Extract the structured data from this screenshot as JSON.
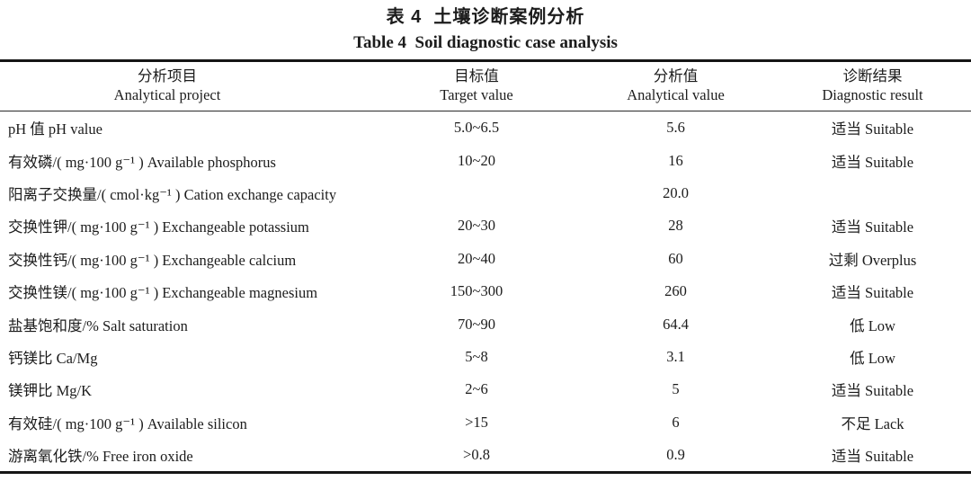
{
  "title": {
    "cn": "表 4  土壤诊断案例分析",
    "en": "Table 4  Soil diagnostic case analysis"
  },
  "table": {
    "headers": [
      {
        "cn": "分析项目",
        "en": "Analytical project"
      },
      {
        "cn": "目标值",
        "en": "Target value"
      },
      {
        "cn": "分析值",
        "en": "Analytical value"
      },
      {
        "cn": "诊断结果",
        "en": "Diagnostic result"
      }
    ],
    "rows": [
      {
        "project": "pH 值 pH value",
        "target": "5.0~6.5",
        "value": "5.6",
        "result": "适当 Suitable"
      },
      {
        "project": "有效磷/( mg·100 g⁻¹ ) Available phosphorus",
        "target": "10~20",
        "value": "16",
        "result": "适当 Suitable"
      },
      {
        "project": "阳离子交换量/( cmol·kg⁻¹ ) Cation exchange capacity",
        "target": "",
        "value": "20.0",
        "result": ""
      },
      {
        "project": "交换性钾/( mg·100 g⁻¹ ) Exchangeable potassium",
        "target": "20~30",
        "value": "28",
        "result": "适当 Suitable"
      },
      {
        "project": "交换性钙/( mg·100 g⁻¹ ) Exchangeable calcium",
        "target": "20~40",
        "value": "60",
        "result": "过剩 Overplus"
      },
      {
        "project": "交换性镁/( mg·100 g⁻¹ ) Exchangeable magnesium",
        "target": "150~300",
        "value": "260",
        "result": "适当 Suitable"
      },
      {
        "project": "盐基饱和度/% Salt saturation",
        "target": "70~90",
        "value": "64.4",
        "result": "低 Low"
      },
      {
        "project": "钙镁比 Ca/Mg",
        "target": "5~8",
        "value": "3.1",
        "result": "低 Low"
      },
      {
        "project": "镁钾比 Mg/K",
        "target": "2~6",
        "value": "5",
        "result": "适当 Suitable"
      },
      {
        "project": "有效硅/( mg·100 g⁻¹ ) Available silicon",
        "target": ">15",
        "value": "6",
        "result": "不足 Lack"
      },
      {
        "project": "游离氧化铁/% Free iron oxide",
        "target": ">0.8",
        "value": "0.9",
        "result": "适当 Suitable"
      }
    ]
  },
  "colors": {
    "text": "#1c1c1c",
    "rule": "#151515",
    "background": "#ffffff"
  }
}
